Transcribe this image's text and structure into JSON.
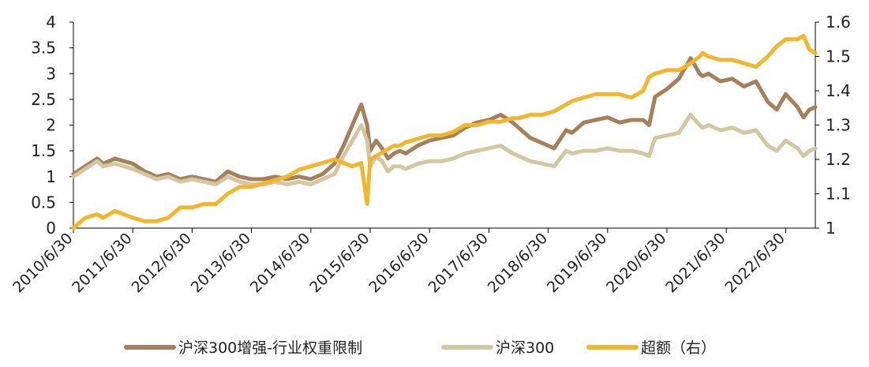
{
  "chart_data": {
    "type": "line",
    "x_tick_labels": [
      "2010/6/30",
      "2011/6/30",
      "2012/6/30",
      "2013/6/30",
      "2014/6/30",
      "2015/6/30",
      "2016/6/30",
      "2017/6/30",
      "2018/6/30",
      "2019/6/30",
      "2020/6/30",
      "2021/6/30",
      "2022/6/30"
    ],
    "x_range": [
      2010.5,
      2023.0
    ],
    "left_axis": {
      "ylim": [
        0,
        4
      ],
      "ticks": [
        "0",
        "0.5",
        "1",
        "1.5",
        "2",
        "2.5",
        "3",
        "3.5",
        "4"
      ]
    },
    "right_axis": {
      "ylim": [
        1,
        1.6
      ],
      "ticks": [
        "1",
        "1.1",
        "1.2",
        "1.3",
        "1.4",
        "1.5",
        "1.6"
      ]
    },
    "grid": false,
    "legend_position": "bottom",
    "series": [
      {
        "name": "沪深300增强-行业权重限制",
        "axis": "left",
        "color": "#a5805a",
        "x": [
          2010.5,
          2010.7,
          2010.9,
          2011.0,
          2011.2,
          2011.35,
          2011.5,
          2011.7,
          2011.9,
          2012.1,
          2012.3,
          2012.5,
          2012.7,
          2012.9,
          2013.1,
          2013.3,
          2013.5,
          2013.7,
          2013.9,
          2014.1,
          2014.3,
          2014.5,
          2014.7,
          2014.9,
          2015.05,
          2015.2,
          2015.35,
          2015.45,
          2015.5,
          2015.6,
          2015.7,
          2015.8,
          2015.9,
          2016.0,
          2016.1,
          2016.3,
          2016.5,
          2016.7,
          2016.9,
          2017.1,
          2017.3,
          2017.5,
          2017.7,
          2017.9,
          2018.0,
          2018.2,
          2018.4,
          2018.6,
          2018.8,
          2018.9,
          2019.1,
          2019.3,
          2019.5,
          2019.7,
          2019.9,
          2020.1,
          2020.2,
          2020.3,
          2020.5,
          2020.7,
          2020.9,
          2021.05,
          2021.1,
          2021.2,
          2021.4,
          2021.6,
          2021.8,
          2022.0,
          2022.2,
          2022.35,
          2022.5,
          2022.7,
          2022.8,
          2022.9,
          2023.0
        ],
        "values": [
          1.05,
          1.2,
          1.35,
          1.25,
          1.35,
          1.3,
          1.25,
          1.1,
          1.0,
          1.05,
          0.95,
          1.0,
          0.95,
          0.9,
          1.1,
          1.0,
          0.95,
          0.95,
          1.0,
          0.95,
          1.0,
          0.95,
          1.05,
          1.25,
          1.6,
          2.0,
          2.4,
          2.0,
          1.5,
          1.7,
          1.55,
          1.35,
          1.45,
          1.5,
          1.45,
          1.6,
          1.7,
          1.75,
          1.8,
          1.95,
          2.05,
          2.1,
          2.2,
          2.05,
          1.95,
          1.75,
          1.65,
          1.55,
          1.9,
          1.85,
          2.05,
          2.1,
          2.15,
          2.05,
          2.1,
          2.1,
          2.0,
          2.55,
          2.7,
          2.9,
          3.3,
          3.0,
          2.95,
          3.0,
          2.85,
          2.9,
          2.75,
          2.85,
          2.45,
          2.3,
          2.6,
          2.35,
          2.15,
          2.3,
          2.35
        ]
      },
      {
        "name": "沪深300",
        "axis": "left",
        "color": "#d3c6a1",
        "x": [
          2010.5,
          2010.7,
          2010.9,
          2011.0,
          2011.2,
          2011.35,
          2011.5,
          2011.7,
          2011.9,
          2012.1,
          2012.3,
          2012.5,
          2012.7,
          2012.9,
          2013.1,
          2013.3,
          2013.5,
          2013.7,
          2013.9,
          2014.1,
          2014.3,
          2014.5,
          2014.7,
          2014.9,
          2015.05,
          2015.2,
          2015.35,
          2015.45,
          2015.5,
          2015.6,
          2015.7,
          2015.8,
          2015.9,
          2016.0,
          2016.1,
          2016.3,
          2016.5,
          2016.7,
          2016.9,
          2017.1,
          2017.3,
          2017.5,
          2017.7,
          2017.9,
          2018.0,
          2018.2,
          2018.4,
          2018.6,
          2018.8,
          2018.9,
          2019.1,
          2019.3,
          2019.5,
          2019.7,
          2019.9,
          2020.1,
          2020.2,
          2020.3,
          2020.5,
          2020.7,
          2020.9,
          2021.05,
          2021.1,
          2021.2,
          2021.4,
          2021.6,
          2021.8,
          2022.0,
          2022.2,
          2022.35,
          2022.5,
          2022.7,
          2022.8,
          2022.9,
          2023.0
        ],
        "values": [
          1.0,
          1.15,
          1.3,
          1.2,
          1.25,
          1.2,
          1.15,
          1.05,
          0.95,
          1.0,
          0.9,
          0.95,
          0.9,
          0.85,
          1.0,
          0.9,
          0.85,
          0.85,
          0.9,
          0.85,
          0.9,
          0.85,
          0.95,
          1.05,
          1.4,
          1.7,
          2.0,
          1.7,
          1.2,
          1.4,
          1.3,
          1.1,
          1.2,
          1.2,
          1.15,
          1.25,
          1.3,
          1.3,
          1.35,
          1.45,
          1.5,
          1.55,
          1.6,
          1.45,
          1.4,
          1.3,
          1.25,
          1.2,
          1.5,
          1.45,
          1.5,
          1.5,
          1.55,
          1.5,
          1.5,
          1.45,
          1.4,
          1.75,
          1.8,
          1.85,
          2.2,
          2.0,
          1.95,
          2.0,
          1.9,
          1.95,
          1.85,
          1.9,
          1.6,
          1.5,
          1.7,
          1.55,
          1.4,
          1.5,
          1.55
        ]
      },
      {
        "name": "超额（右）",
        "axis": "right",
        "color": "#f3b52c",
        "x": [
          2010.5,
          2010.7,
          2010.9,
          2011.0,
          2011.2,
          2011.35,
          2011.5,
          2011.7,
          2011.9,
          2012.1,
          2012.3,
          2012.5,
          2012.7,
          2012.9,
          2013.1,
          2013.3,
          2013.5,
          2013.7,
          2013.9,
          2014.1,
          2014.3,
          2014.5,
          2014.7,
          2014.9,
          2015.05,
          2015.2,
          2015.35,
          2015.45,
          2015.5,
          2015.6,
          2015.7,
          2015.8,
          2015.9,
          2016.0,
          2016.1,
          2016.3,
          2016.5,
          2016.7,
          2016.9,
          2017.1,
          2017.3,
          2017.5,
          2017.7,
          2017.9,
          2018.0,
          2018.2,
          2018.4,
          2018.6,
          2018.8,
          2018.9,
          2019.1,
          2019.3,
          2019.5,
          2019.7,
          2019.9,
          2020.1,
          2020.2,
          2020.3,
          2020.5,
          2020.7,
          2020.9,
          2021.05,
          2021.1,
          2021.2,
          2021.4,
          2021.6,
          2021.8,
          2022.0,
          2022.2,
          2022.35,
          2022.5,
          2022.7,
          2022.8,
          2022.9,
          2023.0
        ],
        "values": [
          1.0,
          1.03,
          1.04,
          1.03,
          1.05,
          1.04,
          1.03,
          1.02,
          1.02,
          1.03,
          1.06,
          1.06,
          1.07,
          1.07,
          1.1,
          1.12,
          1.12,
          1.13,
          1.14,
          1.15,
          1.17,
          1.18,
          1.19,
          1.2,
          1.19,
          1.18,
          1.19,
          1.07,
          1.2,
          1.21,
          1.22,
          1.23,
          1.24,
          1.24,
          1.25,
          1.26,
          1.27,
          1.27,
          1.28,
          1.3,
          1.3,
          1.31,
          1.31,
          1.32,
          1.32,
          1.33,
          1.33,
          1.34,
          1.36,
          1.37,
          1.38,
          1.39,
          1.39,
          1.39,
          1.38,
          1.4,
          1.44,
          1.45,
          1.46,
          1.46,
          1.48,
          1.5,
          1.51,
          1.5,
          1.49,
          1.49,
          1.48,
          1.47,
          1.5,
          1.53,
          1.55,
          1.55,
          1.56,
          1.52,
          1.51
        ]
      }
    ],
    "legend": [
      "沪深300增强-行业权重限制",
      "沪深300",
      "超额（右）"
    ]
  }
}
